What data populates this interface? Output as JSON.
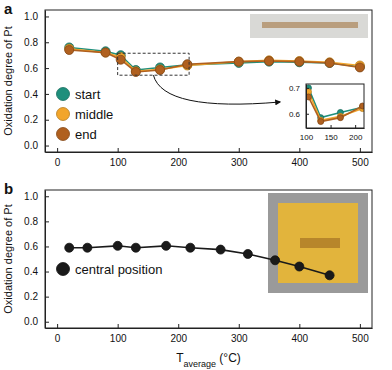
{
  "chart_data": [
    {
      "type": "line",
      "title": "a",
      "ylabel": "Oxidation degree of Pt",
      "x": [
        20,
        80,
        105,
        130,
        170,
        215,
        300,
        350,
        400,
        450,
        500
      ],
      "series": [
        {
          "name": "start",
          "color": "#1f8f7c",
          "marker": "circle",
          "values": [
            0.76,
            0.73,
            0.7,
            0.585,
            0.605,
            0.625,
            0.64,
            0.65,
            0.645,
            0.64,
            0.61
          ]
        },
        {
          "name": "middle",
          "color": "#f2a52b",
          "marker": "circle",
          "values": [
            0.75,
            0.72,
            0.685,
            0.575,
            0.59,
            0.62,
            0.65,
            0.66,
            0.655,
            0.645,
            0.62
          ]
        },
        {
          "name": "end",
          "color": "#b0601f",
          "marker": "circle",
          "values": [
            0.74,
            0.72,
            0.665,
            0.57,
            0.585,
            0.63,
            0.65,
            0.655,
            0.65,
            0.64,
            0.605
          ]
        }
      ],
      "xlim": [
        -20,
        520
      ],
      "xticks": [
        0,
        100,
        200,
        300,
        400,
        500
      ],
      "ylim": [
        -0.05,
        1.05
      ],
      "yticks": [
        {
          "value": 0,
          "label": "0.0"
        },
        0.2,
        0.4,
        0.6,
        0.8,
        {
          "value": 1,
          "label": "1.0"
        }
      ],
      "legend": "lower left",
      "inset": {
        "xlim": [
          100,
          218
        ],
        "ylim": [
          0.545,
          0.715
        ],
        "xticks": [
          100,
          150,
          200
        ],
        "yticks": [
          0.6,
          0.7
        ]
      }
    },
    {
      "type": "line",
      "title": "b",
      "ylabel": "Oxidation degree of Pt",
      "xlabel": "Taverage (°C)",
      "x": [
        20,
        50,
        100,
        130,
        180,
        220,
        270,
        315,
        360,
        400,
        450
      ],
      "series": [
        {
          "name": "central position",
          "color": "#1a1a1a",
          "marker": "circle",
          "values": [
            0.59,
            0.59,
            0.605,
            0.59,
            0.605,
            0.59,
            0.575,
            0.54,
            0.49,
            0.44,
            0.37
          ]
        }
      ],
      "xlim": [
        -20,
        520
      ],
      "xticks": [
        0,
        100,
        200,
        300,
        400,
        500
      ],
      "ylim": [
        -0.05,
        1.05
      ],
      "yticks": [
        {
          "value": 0,
          "label": "0.0"
        },
        0.2,
        0.4,
        0.6,
        0.8,
        {
          "value": 1,
          "label": "1.0"
        }
      ],
      "legend": "center left"
    }
  ]
}
